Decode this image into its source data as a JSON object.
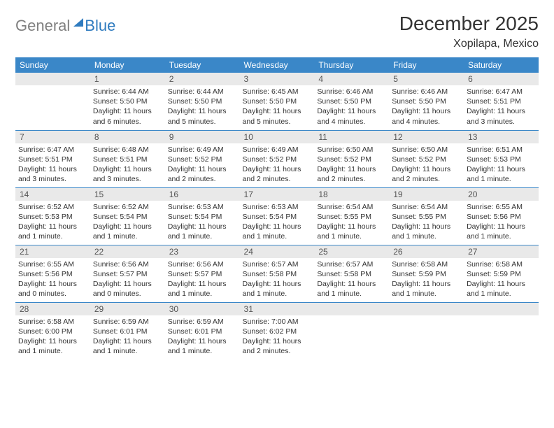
{
  "brand": {
    "gray": "General",
    "blue": "Blue"
  },
  "title": "December 2025",
  "location": "Xopilapa, Mexico",
  "colors": {
    "header_bg": "#3a87c8",
    "header_text": "#ffffff",
    "daynum_bg": "#e9e9e9",
    "row_border": "#3a87c8",
    "logo_gray": "#808080",
    "logo_blue": "#2f7bbf"
  },
  "weekdays": [
    "Sunday",
    "Monday",
    "Tuesday",
    "Wednesday",
    "Thursday",
    "Friday",
    "Saturday"
  ],
  "weeks": [
    [
      {
        "n": "",
        "sunrise": "",
        "sunset": "",
        "daylight": ""
      },
      {
        "n": "1",
        "sunrise": "Sunrise: 6:44 AM",
        "sunset": "Sunset: 5:50 PM",
        "daylight": "Daylight: 11 hours and 6 minutes."
      },
      {
        "n": "2",
        "sunrise": "Sunrise: 6:44 AM",
        "sunset": "Sunset: 5:50 PM",
        "daylight": "Daylight: 11 hours and 5 minutes."
      },
      {
        "n": "3",
        "sunrise": "Sunrise: 6:45 AM",
        "sunset": "Sunset: 5:50 PM",
        "daylight": "Daylight: 11 hours and 5 minutes."
      },
      {
        "n": "4",
        "sunrise": "Sunrise: 6:46 AM",
        "sunset": "Sunset: 5:50 PM",
        "daylight": "Daylight: 11 hours and 4 minutes."
      },
      {
        "n": "5",
        "sunrise": "Sunrise: 6:46 AM",
        "sunset": "Sunset: 5:50 PM",
        "daylight": "Daylight: 11 hours and 4 minutes."
      },
      {
        "n": "6",
        "sunrise": "Sunrise: 6:47 AM",
        "sunset": "Sunset: 5:51 PM",
        "daylight": "Daylight: 11 hours and 3 minutes."
      }
    ],
    [
      {
        "n": "7",
        "sunrise": "Sunrise: 6:47 AM",
        "sunset": "Sunset: 5:51 PM",
        "daylight": "Daylight: 11 hours and 3 minutes."
      },
      {
        "n": "8",
        "sunrise": "Sunrise: 6:48 AM",
        "sunset": "Sunset: 5:51 PM",
        "daylight": "Daylight: 11 hours and 3 minutes."
      },
      {
        "n": "9",
        "sunrise": "Sunrise: 6:49 AM",
        "sunset": "Sunset: 5:52 PM",
        "daylight": "Daylight: 11 hours and 2 minutes."
      },
      {
        "n": "10",
        "sunrise": "Sunrise: 6:49 AM",
        "sunset": "Sunset: 5:52 PM",
        "daylight": "Daylight: 11 hours and 2 minutes."
      },
      {
        "n": "11",
        "sunrise": "Sunrise: 6:50 AM",
        "sunset": "Sunset: 5:52 PM",
        "daylight": "Daylight: 11 hours and 2 minutes."
      },
      {
        "n": "12",
        "sunrise": "Sunrise: 6:50 AM",
        "sunset": "Sunset: 5:52 PM",
        "daylight": "Daylight: 11 hours and 2 minutes."
      },
      {
        "n": "13",
        "sunrise": "Sunrise: 6:51 AM",
        "sunset": "Sunset: 5:53 PM",
        "daylight": "Daylight: 11 hours and 1 minute."
      }
    ],
    [
      {
        "n": "14",
        "sunrise": "Sunrise: 6:52 AM",
        "sunset": "Sunset: 5:53 PM",
        "daylight": "Daylight: 11 hours and 1 minute."
      },
      {
        "n": "15",
        "sunrise": "Sunrise: 6:52 AM",
        "sunset": "Sunset: 5:54 PM",
        "daylight": "Daylight: 11 hours and 1 minute."
      },
      {
        "n": "16",
        "sunrise": "Sunrise: 6:53 AM",
        "sunset": "Sunset: 5:54 PM",
        "daylight": "Daylight: 11 hours and 1 minute."
      },
      {
        "n": "17",
        "sunrise": "Sunrise: 6:53 AM",
        "sunset": "Sunset: 5:54 PM",
        "daylight": "Daylight: 11 hours and 1 minute."
      },
      {
        "n": "18",
        "sunrise": "Sunrise: 6:54 AM",
        "sunset": "Sunset: 5:55 PM",
        "daylight": "Daylight: 11 hours and 1 minute."
      },
      {
        "n": "19",
        "sunrise": "Sunrise: 6:54 AM",
        "sunset": "Sunset: 5:55 PM",
        "daylight": "Daylight: 11 hours and 1 minute."
      },
      {
        "n": "20",
        "sunrise": "Sunrise: 6:55 AM",
        "sunset": "Sunset: 5:56 PM",
        "daylight": "Daylight: 11 hours and 1 minute."
      }
    ],
    [
      {
        "n": "21",
        "sunrise": "Sunrise: 6:55 AM",
        "sunset": "Sunset: 5:56 PM",
        "daylight": "Daylight: 11 hours and 0 minutes."
      },
      {
        "n": "22",
        "sunrise": "Sunrise: 6:56 AM",
        "sunset": "Sunset: 5:57 PM",
        "daylight": "Daylight: 11 hours and 0 minutes."
      },
      {
        "n": "23",
        "sunrise": "Sunrise: 6:56 AM",
        "sunset": "Sunset: 5:57 PM",
        "daylight": "Daylight: 11 hours and 1 minute."
      },
      {
        "n": "24",
        "sunrise": "Sunrise: 6:57 AM",
        "sunset": "Sunset: 5:58 PM",
        "daylight": "Daylight: 11 hours and 1 minute."
      },
      {
        "n": "25",
        "sunrise": "Sunrise: 6:57 AM",
        "sunset": "Sunset: 5:58 PM",
        "daylight": "Daylight: 11 hours and 1 minute."
      },
      {
        "n": "26",
        "sunrise": "Sunrise: 6:58 AM",
        "sunset": "Sunset: 5:59 PM",
        "daylight": "Daylight: 11 hours and 1 minute."
      },
      {
        "n": "27",
        "sunrise": "Sunrise: 6:58 AM",
        "sunset": "Sunset: 5:59 PM",
        "daylight": "Daylight: 11 hours and 1 minute."
      }
    ],
    [
      {
        "n": "28",
        "sunrise": "Sunrise: 6:58 AM",
        "sunset": "Sunset: 6:00 PM",
        "daylight": "Daylight: 11 hours and 1 minute."
      },
      {
        "n": "29",
        "sunrise": "Sunrise: 6:59 AM",
        "sunset": "Sunset: 6:01 PM",
        "daylight": "Daylight: 11 hours and 1 minute."
      },
      {
        "n": "30",
        "sunrise": "Sunrise: 6:59 AM",
        "sunset": "Sunset: 6:01 PM",
        "daylight": "Daylight: 11 hours and 1 minute."
      },
      {
        "n": "31",
        "sunrise": "Sunrise: 7:00 AM",
        "sunset": "Sunset: 6:02 PM",
        "daylight": "Daylight: 11 hours and 2 minutes."
      },
      {
        "n": "",
        "sunrise": "",
        "sunset": "",
        "daylight": ""
      },
      {
        "n": "",
        "sunrise": "",
        "sunset": "",
        "daylight": ""
      },
      {
        "n": "",
        "sunrise": "",
        "sunset": "",
        "daylight": ""
      }
    ]
  ]
}
